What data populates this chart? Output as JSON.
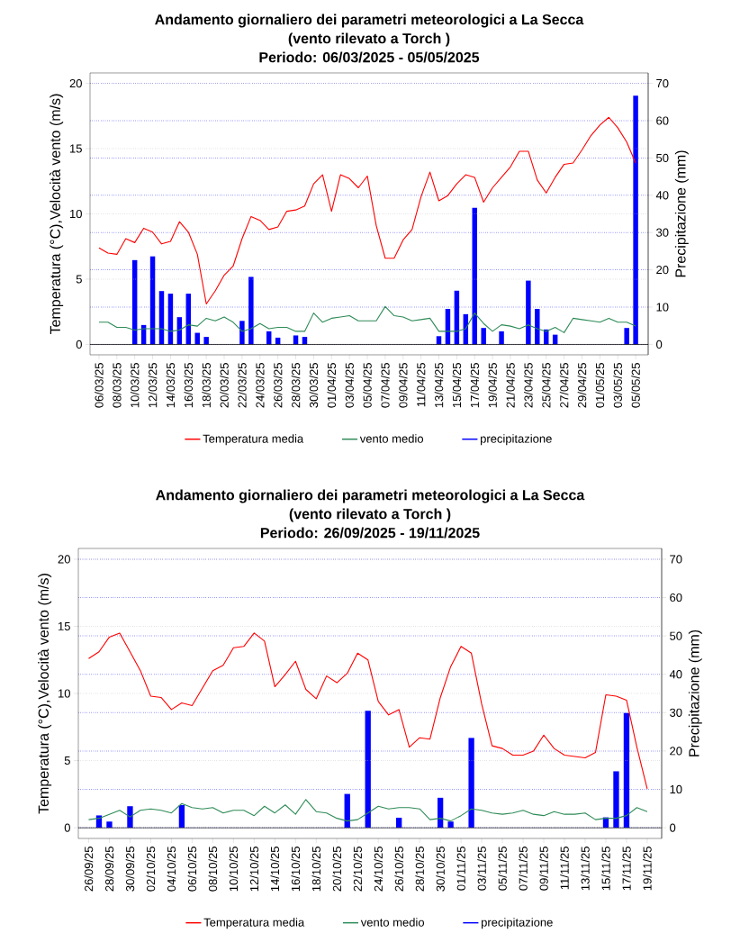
{
  "chart_data": [
    {
      "type": "line",
      "title": "Andamento giornaliero dei parametri meteorologici a La Secca",
      "subtitle": "(vento rilevato a Torch )",
      "annotations": [
        "Periodo: 06/03/2025 - 05/05/2025"
      ],
      "ylabel": "Temperatura (°C),Velocità vento (m/s)",
      "y2label": "Precipitazione (mm)",
      "categories": [
        "06/03/25",
        null,
        "08/03/25",
        null,
        "10/03/25",
        null,
        "12/03/25",
        null,
        "14/03/25",
        null,
        "16/03/25",
        null,
        "18/03/25",
        null,
        "20/03/25",
        null,
        "22/03/25",
        null,
        "24/03/25",
        null,
        "26/03/25",
        null,
        "28/03/25",
        null,
        "30/03/25",
        null,
        "01/04/25",
        null,
        "03/04/25",
        null,
        "05/04/25",
        null,
        "07/04/25",
        null,
        "09/04/25",
        null,
        "11/04/25",
        null,
        "13/04/25",
        null,
        "15/04/25",
        null,
        "17/04/25",
        null,
        "19/04/25",
        null,
        "21/04/25",
        null,
        "23/04/25",
        null,
        "25/04/25",
        null,
        "27/04/25",
        null,
        "29/04/25",
        null,
        "01/05/25",
        null,
        "03/05/25",
        null,
        "05/05/25"
      ],
      "series": [
        {
          "name": "Temperatura media",
          "color": "#ff0000",
          "values": [
            7.4,
            7.0,
            6.9,
            8.1,
            7.8,
            8.9,
            8.6,
            7.7,
            7.9,
            9.4,
            8.6,
            6.9,
            3.1,
            4.1,
            5.3,
            6.0,
            8.1,
            9.8,
            9.5,
            8.8,
            9.0,
            10.2,
            10.3,
            10.6,
            12.3,
            13.0,
            10.2,
            13.0,
            12.7,
            12.0,
            12.9,
            9.1,
            6.6,
            6.6,
            8.0,
            8.8,
            11.3,
            13.2,
            11.0,
            11.4,
            12.3,
            13.0,
            12.8,
            10.9,
            12.0,
            12.8,
            13.6,
            14.8,
            14.8,
            12.6,
            11.6,
            12.8,
            13.8,
            13.9,
            14.9,
            16.0,
            16.8,
            17.4,
            16.6,
            15.5,
            13.9
          ]
        },
        {
          "name": "vento medio",
          "color": "#2e8b57",
          "values": [
            1.7,
            1.7,
            1.3,
            1.3,
            1.1,
            1.2,
            1.2,
            1.2,
            1.0,
            1.1,
            1.5,
            1.4,
            2.0,
            1.8,
            2.1,
            1.7,
            1.0,
            1.2,
            1.6,
            1.2,
            1.3,
            1.3,
            1.0,
            1.0,
            2.4,
            1.7,
            2.0,
            2.1,
            2.2,
            1.8,
            1.8,
            1.8,
            2.9,
            2.2,
            2.1,
            1.8,
            1.9,
            2.0,
            1.0,
            1.0,
            1.0,
            1.2,
            2.4,
            1.6,
            1.0,
            1.5,
            1.4,
            1.2,
            1.5,
            1.2,
            1.0,
            1.3,
            0.9,
            2.0,
            1.9,
            1.8,
            1.7,
            2.0,
            1.7,
            1.7,
            1.4
          ]
        },
        {
          "name": "precipitazione",
          "color": "#0000ff",
          "type": "bar",
          "axis": "y2",
          "values": [
            0,
            0,
            0,
            0,
            22.6,
            5.2,
            23.6,
            14.3,
            13.6,
            7.3,
            13.6,
            3.1,
            2.0,
            0,
            0,
            0,
            6.3,
            18.1,
            0,
            3.5,
            1.8,
            0,
            2.4,
            2.0,
            0,
            0,
            0,
            0,
            0,
            0,
            0,
            0,
            0,
            0,
            0,
            0,
            0,
            0,
            2.2,
            9.5,
            14.4,
            8.1,
            36.6,
            4.4,
            0,
            3.5,
            0,
            0,
            17.1,
            9.5,
            4.0,
            2.6,
            0,
            0,
            0,
            0,
            0,
            0,
            0,
            4.4,
            66.7
          ]
        }
      ],
      "ylim": [
        -0.8,
        20.8
      ],
      "yticks": [
        0,
        5,
        10,
        15,
        20
      ],
      "y2lim": [
        -2.8,
        72.8
      ],
      "y2ticks": [
        0,
        10,
        20,
        30,
        40,
        50,
        60,
        70
      ],
      "grid": "y",
      "legend": "bottom",
      "line_style": "solid",
      "ref_lines": [
        {
          "axis": "y",
          "value": 0,
          "color": "#000000"
        }
      ]
    },
    {
      "type": "line",
      "title": "Andamento giornaliero dei parametri meteorologici a La Secca",
      "subtitle": "(vento rilevato a Torch )",
      "annotations": [
        "Periodo: 26/09/2025 - 19/11/2025"
      ],
      "ylabel": "Temperatura (°C),Velocità vento (m/s)",
      "y2label": "Precipitazione (mm)",
      "categories": [
        "26/09/25",
        null,
        "28/09/25",
        null,
        "30/09/25",
        null,
        "02/10/25",
        null,
        "04/10/25",
        null,
        "06/10/25",
        null,
        "08/10/25",
        null,
        "10/10/25",
        null,
        "12/10/25",
        null,
        "14/10/25",
        null,
        "16/10/25",
        null,
        "18/10/25",
        null,
        "20/10/25",
        null,
        "22/10/25",
        null,
        "24/10/25",
        null,
        "26/10/25",
        null,
        "28/10/25",
        null,
        "30/10/25",
        null,
        "01/11/25",
        null,
        "03/11/25",
        null,
        "05/11/25",
        null,
        "07/11/25",
        null,
        "09/11/25",
        null,
        "11/11/25",
        null,
        "13/11/25",
        null,
        "15/11/25",
        null,
        "17/11/25",
        null,
        "19/11/25"
      ],
      "series": [
        {
          "name": "Temperatura media",
          "color": "#ff0000",
          "values": [
            12.6,
            13.1,
            14.2,
            14.5,
            13.1,
            11.7,
            9.8,
            9.7,
            8.8,
            9.3,
            9.1,
            10.4,
            11.7,
            12.1,
            13.4,
            13.5,
            14.5,
            13.9,
            10.5,
            11.4,
            12.4,
            10.3,
            9.6,
            11.3,
            10.8,
            11.5,
            13.0,
            12.5,
            9.4,
            8.4,
            8.8,
            6.0,
            6.7,
            6.6,
            9.7,
            12.0,
            13.5,
            13.0,
            9.2,
            6.1,
            5.9,
            5.4,
            5.4,
            5.7,
            6.9,
            5.9,
            5.4,
            5.3,
            5.2,
            5.6,
            9.9,
            9.8,
            9.5,
            6.0,
            2.9
          ]
        },
        {
          "name": "vento medio",
          "color": "#2e8b57",
          "values": [
            0.6,
            0.7,
            1.0,
            1.3,
            0.8,
            1.3,
            1.4,
            1.3,
            1.1,
            1.8,
            1.5,
            1.4,
            1.5,
            1.1,
            1.3,
            1.3,
            0.9,
            1.6,
            1.1,
            1.7,
            1.0,
            2.1,
            1.2,
            1.1,
            0.7,
            0.5,
            0.6,
            1.1,
            1.6,
            1.4,
            1.5,
            1.5,
            1.4,
            0.6,
            0.7,
            0.5,
            0.9,
            1.4,
            1.3,
            1.1,
            1.0,
            1.1,
            1.3,
            1.0,
            0.9,
            1.2,
            1.0,
            1.0,
            1.1,
            0.6,
            0.7,
            0.7,
            0.9,
            1.5,
            1.2
          ]
        },
        {
          "name": "precipitazione",
          "color": "#0000ff",
          "type": "bar",
          "axis": "y2",
          "values": [
            0,
            3.2,
            1.6,
            0,
            5.6,
            0,
            0,
            0,
            0,
            5.9,
            0,
            0,
            0,
            0,
            0,
            0,
            0,
            0,
            0,
            0,
            0,
            0,
            0,
            0,
            0,
            8.8,
            0,
            30.5,
            0,
            0,
            2.6,
            0,
            0,
            0,
            7.8,
            1.6,
            0,
            23.4,
            0,
            0,
            0,
            0,
            0,
            0,
            0,
            0,
            0,
            0,
            0,
            0,
            2.7,
            14.7,
            29.9,
            0,
            0
          ]
        }
      ],
      "ylim": [
        -0.8,
        20.8
      ],
      "yticks": [
        0,
        5,
        10,
        15,
        20
      ],
      "y2lim": [
        -2.8,
        72.8
      ],
      "y2ticks": [
        0,
        10,
        20,
        30,
        40,
        50,
        60,
        70
      ],
      "grid": "y",
      "legend": "bottom",
      "line_style": "solid",
      "ref_lines": [
        {
          "axis": "y",
          "value": 0,
          "color": "#000000"
        }
      ]
    }
  ]
}
